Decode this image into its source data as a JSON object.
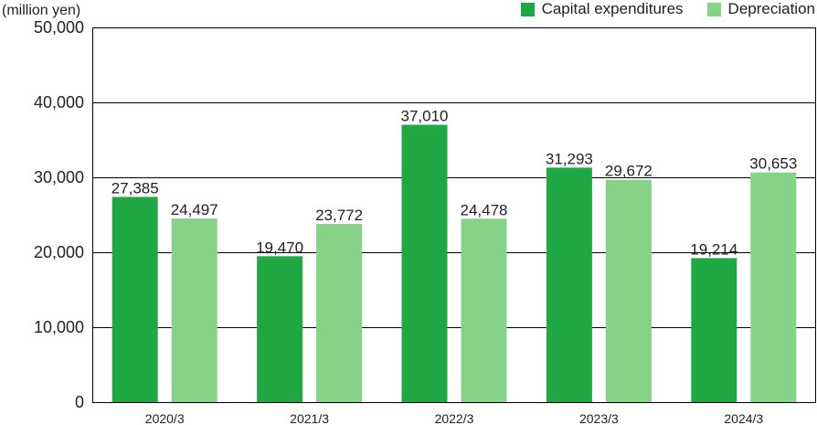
{
  "chart_data": {
    "type": "bar",
    "title": "",
    "unit_label": "(million yen)",
    "xlabel": "",
    "ylabel": "",
    "categories": [
      "2020/3",
      "2021/3",
      "2022/3",
      "2023/3",
      "2024/3"
    ],
    "series": [
      {
        "name": "Capital expenditures",
        "color": "#1fa744",
        "values": [
          27385,
          19470,
          37010,
          31293,
          19214
        ],
        "labels": [
          "27,385",
          "19,470",
          "37,010",
          "31,293",
          "19,214"
        ]
      },
      {
        "name": "Depreciation",
        "color": "#86d286",
        "values": [
          24497,
          23772,
          24478,
          29672,
          30653
        ],
        "labels": [
          "24,497",
          "23,772",
          "24,478",
          "29,672",
          "30,653"
        ]
      }
    ],
    "ylim": [
      0,
      50000
    ],
    "yticks": [
      0,
      10000,
      20000,
      30000,
      40000,
      50000
    ],
    "ytick_labels": [
      "0",
      "10,000",
      "20,000",
      "30,000",
      "40,000",
      "50,000"
    ],
    "grid": true,
    "legend_position": "top-right"
  }
}
